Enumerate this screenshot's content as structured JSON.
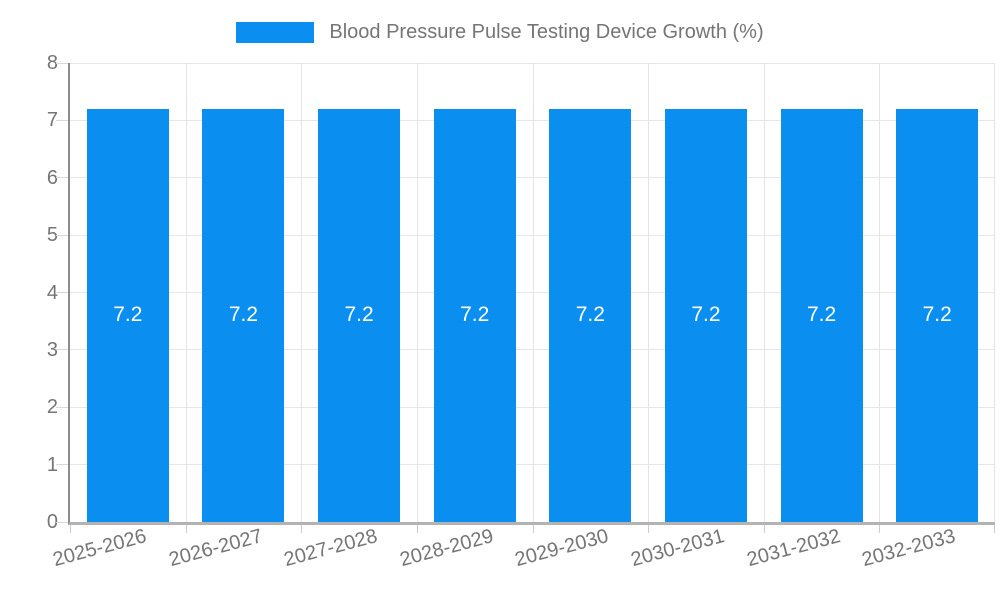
{
  "legend": {
    "label": "Blood Pressure Pulse Testing Device Growth (%)",
    "swatch_color": "#0a8ef0"
  },
  "chart_data": {
    "type": "bar",
    "title": "Blood Pressure Pulse Testing Device Growth (%)",
    "categories": [
      "2025-2026",
      "2026-2027",
      "2027-2028",
      "2028-2029",
      "2029-2030",
      "2030-2031",
      "2031-2032",
      "2032-2033"
    ],
    "values": [
      7.2,
      7.2,
      7.2,
      7.2,
      7.2,
      7.2,
      7.2,
      7.2
    ],
    "value_labels": [
      "7.2",
      "7.2",
      "7.2",
      "7.2",
      "7.2",
      "7.2",
      "7.2",
      "7.2"
    ],
    "xlabel": "",
    "ylabel": "",
    "ylim": [
      0,
      8
    ],
    "yticks": [
      0,
      1,
      2,
      3,
      4,
      5,
      6,
      7,
      8
    ],
    "grid": true,
    "legend_position": "top",
    "x_label_rotation_deg": -15,
    "colors": {
      "bar": "#0a8ef0",
      "value_label": "#ffffff",
      "axis_text": "#757575",
      "gridline": "#e6e6e6",
      "y_axis_line": "#8c8c8c",
      "x_axis_line": "#b3b3b3"
    }
  }
}
